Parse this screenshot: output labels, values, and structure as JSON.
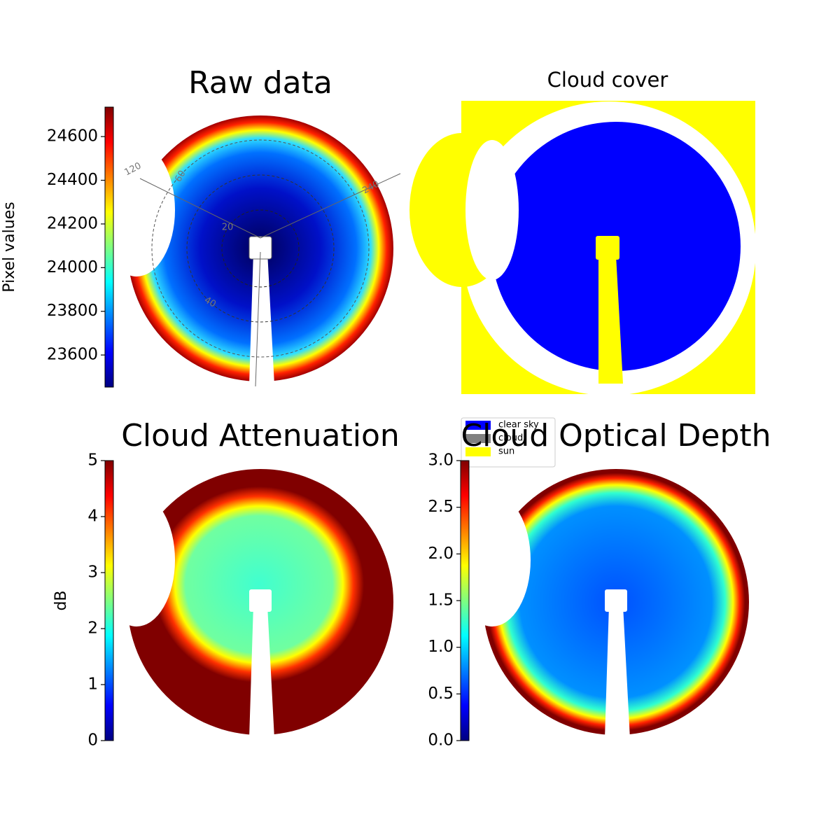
{
  "chart_data": [
    {
      "type": "image",
      "title": "Raw data",
      "colorbar_label": "Pixel values",
      "colormap": "jet",
      "ylim": [
        23453,
        24735
      ],
      "yticks": [
        23600,
        23800,
        24000,
        24200,
        24400,
        24600
      ],
      "annotations": [
        "120",
        "240",
        "60",
        "20",
        "40"
      ]
    },
    {
      "type": "image",
      "title": "Cloud cover",
      "legend": [
        {
          "name": "clear sky",
          "color": "#0000ff"
        },
        {
          "name": "cloud",
          "color": "#808080"
        },
        {
          "name": "sun",
          "color": "#ffff00"
        }
      ]
    },
    {
      "type": "image",
      "title": "Cloud Attenuation",
      "colorbar_label": "dB",
      "colormap": "jet",
      "ylim": [
        0,
        5
      ],
      "yticks": [
        0,
        1,
        2,
        3,
        4,
        5
      ]
    },
    {
      "type": "image",
      "title": "Cloud Optical Depth",
      "colormap": "jet",
      "ylim": [
        0,
        3
      ],
      "yticks": [
        {
          "value": 0,
          "label": "0.0"
        },
        0.5,
        {
          "value": 1,
          "label": "1.0"
        },
        1.5,
        {
          "value": 2,
          "label": "2.0"
        },
        2.5,
        {
          "value": 3,
          "label": "3.0"
        }
      ]
    }
  ]
}
